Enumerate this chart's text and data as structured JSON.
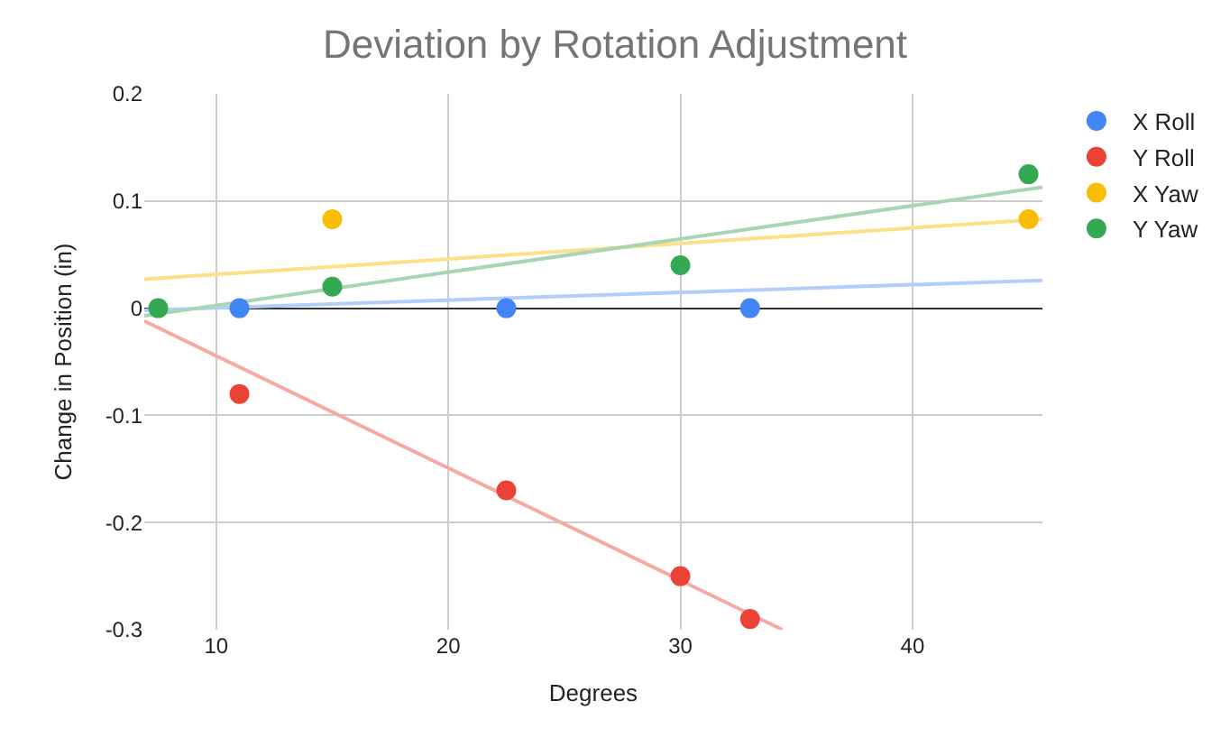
{
  "chart_data": {
    "type": "scatter",
    "title": "Deviation by Rotation Adjustment",
    "xlabel": "Degrees",
    "ylabel": "Change in Position (in)",
    "xlim": [
      6.9,
      45.6
    ],
    "xticks": [
      10,
      20,
      30,
      40
    ],
    "ylim": [
      -0.3,
      0.2
    ],
    "yticks": [
      -0.3,
      -0.2,
      -0.1,
      0,
      0.1,
      0.2
    ],
    "grid": true,
    "legend": "top right",
    "marker": "circle",
    "series": [
      {
        "type": "line",
        "marker": "none",
        "color": "#b3cefb",
        "x": [
          6.9,
          45.6
        ],
        "values": [
          -0.002,
          0.026
        ]
      },
      {
        "type": "line",
        "marker": "none",
        "color": "#f5aba4",
        "x": [
          6.9,
          34.4
        ],
        "values": [
          -0.012,
          -0.3
        ]
      },
      {
        "type": "line",
        "marker": "none",
        "color": "#fde08a",
        "x": [
          6.9,
          45.6
        ],
        "values": [
          0.027,
          0.083
        ]
      },
      {
        "type": "line",
        "marker": "none",
        "color": "#a8d5b3",
        "x": [
          6.9,
          45.6
        ],
        "values": [
          -0.007,
          0.113
        ]
      },
      {
        "name": "X Roll",
        "color": "#4285f4",
        "x": [
          11,
          22.5,
          30,
          33
        ],
        "values": [
          0,
          0,
          null,
          0
        ]
      },
      {
        "name": "Y Roll",
        "color": "#ea4335",
        "x": [
          11,
          22.5,
          30,
          33
        ],
        "values": [
          -0.08,
          -0.17,
          -0.25,
          -0.29
        ]
      },
      {
        "name": "X Yaw",
        "color": "#fbbc04",
        "x": [
          15,
          45
        ],
        "values": [
          0.083,
          0.083
        ]
      },
      {
        "name": "Y Yaw",
        "color": "#34a853",
        "x": [
          7.5,
          15,
          30,
          45
        ],
        "values": [
          0,
          0.02,
          0.04,
          0.125
        ]
      }
    ]
  }
}
